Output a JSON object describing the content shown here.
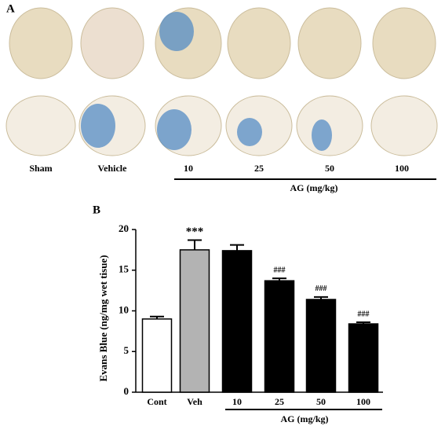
{
  "panel_a": {
    "label": "A",
    "columns": [
      "Sham",
      "Vehicle",
      "10",
      "25",
      "50",
      "100"
    ],
    "group_label": "AG (mg/kg)"
  },
  "chart_data": {
    "type": "bar",
    "panel_label": "B",
    "y_label": "Evans Blue (ng/mg wet tisue)",
    "categories": [
      "Cont",
      "Veh",
      "10",
      "25",
      "50",
      "100"
    ],
    "values": [
      9.0,
      17.5,
      17.4,
      13.7,
      11.4,
      8.4
    ],
    "errors": [
      0.3,
      1.2,
      0.7,
      0.3,
      0.3,
      0.2
    ],
    "colors": [
      "#ffffff",
      "#b3b3b3",
      "#000000",
      "#000000",
      "#000000",
      "#000000"
    ],
    "annotations": [
      {
        "category": "Veh",
        "text": "***"
      },
      {
        "category": "25",
        "text": "###"
      },
      {
        "category": "50",
        "text": "###"
      },
      {
        "category": "100",
        "text": "###"
      }
    ],
    "group_label": "AG (mg/kg)",
    "ylim": [
      0,
      20
    ],
    "yticks": [
      0,
      5,
      10,
      15,
      20
    ]
  }
}
